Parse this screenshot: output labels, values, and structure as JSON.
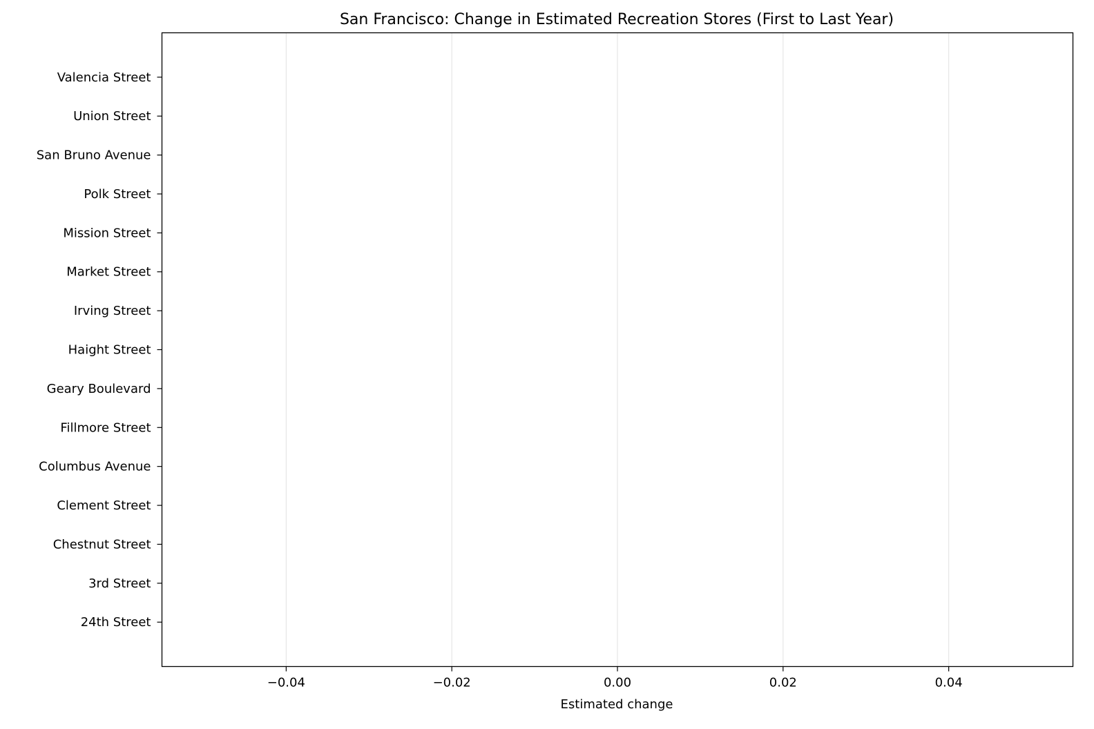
{
  "chart_data": {
    "type": "bar",
    "orientation": "horizontal",
    "title": "San Francisco: Change in Estimated Recreation Stores (First to Last Year)",
    "xlabel": "Estimated change",
    "ylabel": "",
    "categories": [
      "24th Street",
      "3rd Street",
      "Chestnut Street",
      "Clement Street",
      "Columbus Avenue",
      "Fillmore Street",
      "Geary Boulevard",
      "Haight Street",
      "Irving Street",
      "Market Street",
      "Mission Street",
      "Polk Street",
      "San Bruno Avenue",
      "Union Street",
      "Valencia Street"
    ],
    "values": [
      0,
      0,
      0,
      0,
      0,
      0,
      0,
      0,
      0,
      0,
      0,
      0,
      0,
      0,
      0
    ],
    "xlim": [
      -0.055,
      0.055
    ],
    "xticks": [
      -0.04,
      -0.02,
      0.0,
      0.02,
      0.04
    ],
    "xtick_labels": [
      "−0.04",
      "−0.02",
      "0.00",
      "0.02",
      "0.04"
    ],
    "grid": "x-axis vertical lines",
    "grid_color": "#e6e6e6",
    "bar_color": "#1f77b4"
  }
}
